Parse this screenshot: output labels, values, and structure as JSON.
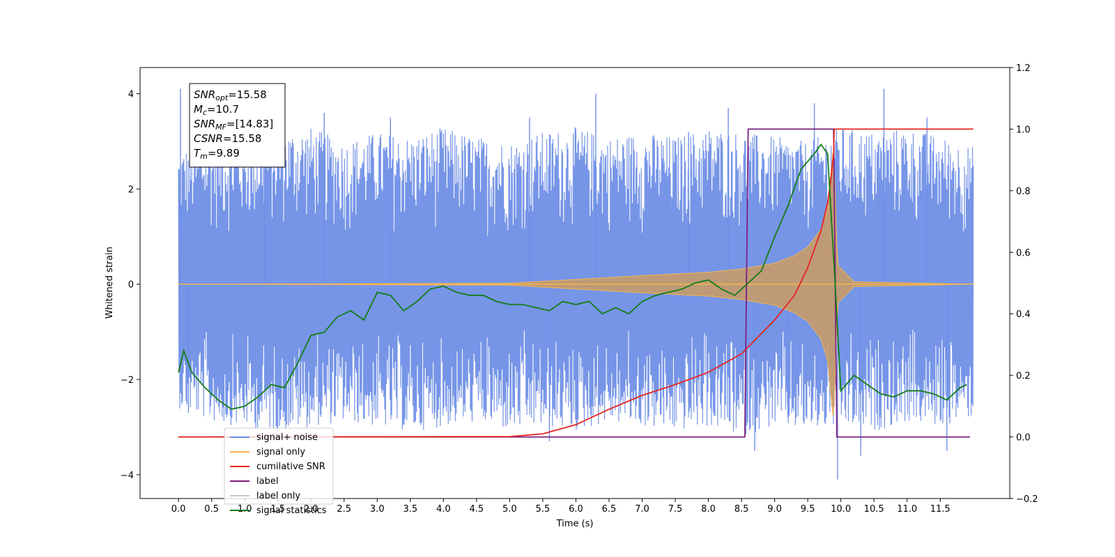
{
  "chart_data": {
    "type": "line",
    "xlabel": "Time (s)",
    "ylabel": "Whitened strain",
    "xlim": [
      -0.58,
      12.55
    ],
    "ylim": [
      -4.5,
      4.55
    ],
    "y2lim": [
      -0.2,
      1.2
    ],
    "grid": false,
    "legend_position": "lower-left",
    "x_ticks": [
      0.0,
      0.5,
      1.0,
      1.5,
      2.0,
      2.5,
      3.0,
      3.5,
      4.0,
      4.5,
      5.0,
      5.5,
      6.0,
      6.5,
      7.0,
      7.5,
      8.0,
      8.5,
      9.0,
      9.5,
      10.0,
      10.5,
      11.0,
      11.5
    ],
    "x_tick_labels": [
      "0.0",
      "0.5",
      "1.0",
      "1.5",
      "2.0",
      "2.5",
      "3.0",
      "3.5",
      "4.0",
      "4.5",
      "5.0",
      "5.5",
      "6.0",
      "6.5",
      "7.0",
      "7.5",
      "8.0",
      "8.5",
      "9.0",
      "9.5",
      "10.0",
      "10.5",
      "11.0",
      "11.5"
    ],
    "y_ticks": [
      -4,
      -2,
      0,
      2,
      4
    ],
    "y_tick_labels": [
      "−4",
      "−2",
      "0",
      "2",
      "4"
    ],
    "y2_ticks": [
      -0.2,
      0.0,
      0.2,
      0.4,
      0.6,
      0.8,
      1.0,
      1.2
    ],
    "y2_tick_labels": [
      "−0.2",
      "0.0",
      "0.2",
      "0.4",
      "0.6",
      "0.8",
      "1.0",
      "1.2"
    ],
    "info_box": [
      {
        "base": "SNR",
        "sub": "opt",
        "rest": "=15.58"
      },
      {
        "base": "M",
        "sub": "c",
        "rest": "=10.7"
      },
      {
        "base": "SNR",
        "sub": "MF",
        "rest": "=[14.83]"
      },
      {
        "base": "CSNR",
        "sub": "",
        "rest": "=15.58"
      },
      {
        "base": "T",
        "sub": "m",
        "rest": "=9.89"
      }
    ],
    "series": [
      {
        "name": "signal+ noise",
        "color": "#6f8fe6",
        "axis": "left",
        "style": "band",
        "x": [
          0.0,
          0.5,
          1.0,
          1.5,
          2.0,
          2.5,
          3.0,
          3.5,
          4.0,
          4.5,
          5.0,
          5.5,
          6.0,
          6.5,
          7.0,
          7.5,
          8.0,
          8.5,
          9.0,
          9.5,
          10.0,
          10.5,
          11.0,
          11.5,
          12.0
        ],
        "upper": [
          2.8,
          3.1,
          3.0,
          3.2,
          3.3,
          3.0,
          3.2,
          3.1,
          3.3,
          3.1,
          3.0,
          3.2,
          3.3,
          3.1,
          3.2,
          3.1,
          3.3,
          3.2,
          3.1,
          3.0,
          3.3,
          3.2,
          3.3,
          3.1,
          2.9
        ],
        "lower": [
          -2.6,
          -2.9,
          -3.0,
          -3.1,
          -3.0,
          -2.9,
          -3.0,
          -3.1,
          -3.0,
          -2.9,
          -3.1,
          -3.0,
          -3.1,
          -2.9,
          -3.0,
          -3.1,
          -3.0,
          -3.2,
          -3.0,
          -3.1,
          -3.0,
          -3.1,
          -2.9,
          -3.0,
          -2.8
        ],
        "spikes": [
          [
            0.03,
            4.1
          ],
          [
            0.15,
            -2.7
          ],
          [
            1.3,
            3.0
          ],
          [
            2.2,
            3.6
          ],
          [
            3.2,
            3.5
          ],
          [
            5.3,
            3.5
          ],
          [
            5.6,
            -3.3
          ],
          [
            6.3,
            4.0
          ],
          [
            7.7,
            3.2
          ],
          [
            8.3,
            3.7
          ],
          [
            8.7,
            -3.5
          ],
          [
            9.2,
            -2.8
          ],
          [
            9.6,
            3.8
          ],
          [
            9.95,
            -4.1
          ],
          [
            10.3,
            -3.6
          ],
          [
            10.65,
            4.1
          ],
          [
            11.3,
            3.5
          ],
          [
            11.6,
            -3.5
          ]
        ]
      },
      {
        "name": "signal only",
        "color": "#f5b64c",
        "axis": "left",
        "style": "chirp",
        "x": [
          0.0,
          5.0,
          6.0,
          7.0,
          8.0,
          8.5,
          9.0,
          9.3,
          9.5,
          9.7,
          9.8,
          9.89,
          9.95,
          10.2,
          12.0
        ],
        "amp": [
          0.0,
          0.02,
          0.1,
          0.18,
          0.25,
          0.32,
          0.44,
          0.6,
          0.78,
          1.15,
          1.6,
          2.9,
          0.4,
          0.05,
          0.0
        ]
      },
      {
        "name": "cumilative SNR",
        "color": "#e8231e",
        "axis": "right",
        "x": [
          0.0,
          5.0,
          5.5,
          6.0,
          6.5,
          7.0,
          7.5,
          8.0,
          8.5,
          9.0,
          9.3,
          9.5,
          9.7,
          9.8,
          9.85,
          9.89,
          9.9,
          12.0
        ],
        "y": [
          0.0,
          0.001,
          0.01,
          0.04,
          0.09,
          0.135,
          0.17,
          0.21,
          0.27,
          0.38,
          0.46,
          0.55,
          0.67,
          0.76,
          0.84,
          0.92,
          1.0,
          1.0
        ]
      },
      {
        "name": "label",
        "color": "#7b1f7e",
        "axis": "right",
        "x": [
          0.0,
          8.55,
          8.6,
          9.89,
          9.94,
          11.95
        ],
        "y": [
          0.0,
          0.0,
          1.0,
          1.0,
          0.0,
          0.0
        ]
      },
      {
        "name": "label only",
        "color": "#c9c9c9",
        "axis": "right",
        "x": [],
        "y": []
      },
      {
        "name": "signal statistics",
        "color": "#137c15",
        "axis": "right",
        "x": [
          0.0,
          0.08,
          0.2,
          0.4,
          0.6,
          0.8,
          1.0,
          1.2,
          1.4,
          1.6,
          1.8,
          2.0,
          2.2,
          2.4,
          2.6,
          2.8,
          3.0,
          3.2,
          3.4,
          3.6,
          3.8,
          4.0,
          4.2,
          4.4,
          4.6,
          4.8,
          5.0,
          5.2,
          5.4,
          5.6,
          5.8,
          6.0,
          6.2,
          6.4,
          6.6,
          6.8,
          7.0,
          7.2,
          7.4,
          7.6,
          7.8,
          8.0,
          8.2,
          8.4,
          8.6,
          8.8,
          9.0,
          9.2,
          9.4,
          9.6,
          9.7,
          9.8,
          9.9,
          10.0,
          10.2,
          10.4,
          10.6,
          10.8,
          11.0,
          11.2,
          11.4,
          11.6,
          11.8,
          11.9
        ],
        "y": [
          0.21,
          0.28,
          0.21,
          0.16,
          0.12,
          0.09,
          0.1,
          0.13,
          0.17,
          0.16,
          0.24,
          0.33,
          0.34,
          0.39,
          0.41,
          0.38,
          0.47,
          0.46,
          0.41,
          0.44,
          0.48,
          0.49,
          0.47,
          0.46,
          0.46,
          0.44,
          0.43,
          0.43,
          0.42,
          0.41,
          0.44,
          0.43,
          0.44,
          0.4,
          0.42,
          0.4,
          0.44,
          0.46,
          0.47,
          0.48,
          0.5,
          0.51,
          0.48,
          0.46,
          0.5,
          0.54,
          0.65,
          0.75,
          0.87,
          0.92,
          0.95,
          0.92,
          0.55,
          0.15,
          0.2,
          0.17,
          0.14,
          0.13,
          0.15,
          0.15,
          0.14,
          0.12,
          0.16,
          0.17
        ]
      }
    ]
  }
}
